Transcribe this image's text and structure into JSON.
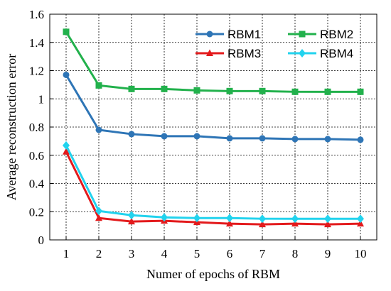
{
  "chart_data": {
    "type": "line",
    "xlabel": "Numer of epochs of RBM",
    "ylabel": "Average reconstruction error",
    "x": [
      1,
      2,
      3,
      4,
      5,
      6,
      7,
      8,
      9,
      10
    ],
    "xlim": [
      0.5,
      10.5
    ],
    "ylim": [
      0,
      1.6
    ],
    "yticks": [
      "0",
      "0.2",
      "0.4",
      "0.6",
      "0.8",
      "1",
      "1.2",
      "1.4",
      "1.6"
    ],
    "xticks": [
      "1",
      "2",
      "3",
      "4",
      "5",
      "6",
      "7",
      "8",
      "9",
      "10"
    ],
    "grid": true,
    "legend_position": "top-right",
    "series": [
      {
        "name": "RBM1",
        "color": "#2e75b6",
        "marker": "circle",
        "values": [
          1.17,
          0.78,
          0.75,
          0.735,
          0.735,
          0.72,
          0.72,
          0.715,
          0.715,
          0.71
        ]
      },
      {
        "name": "RBM2",
        "color": "#22b14c",
        "marker": "square",
        "values": [
          1.475,
          1.095,
          1.07,
          1.07,
          1.06,
          1.055,
          1.055,
          1.05,
          1.05,
          1.05
        ]
      },
      {
        "name": "RBM3",
        "color": "#e31a1c",
        "marker": "triangle",
        "values": [
          0.625,
          0.155,
          0.13,
          0.135,
          0.125,
          0.115,
          0.11,
          0.115,
          0.11,
          0.115
        ]
      },
      {
        "name": "RBM4",
        "color": "#22d3ee",
        "marker": "diamond",
        "values": [
          0.67,
          0.205,
          0.175,
          0.16,
          0.155,
          0.155,
          0.15,
          0.15,
          0.15,
          0.15
        ]
      }
    ]
  }
}
